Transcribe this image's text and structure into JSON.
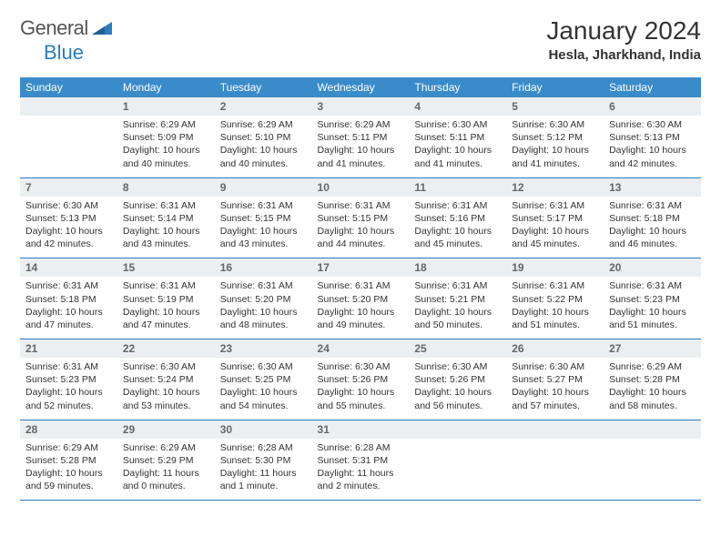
{
  "brand": {
    "word1": "General",
    "word2": "Blue"
  },
  "header": {
    "month_title": "January 2024",
    "location": "Hesla, Jharkhand, India"
  },
  "colors": {
    "header_bg": "#3a8bc9",
    "rule": "#2b7bbf",
    "daynum_bg": "#eceff1"
  },
  "weekdays": [
    "Sunday",
    "Monday",
    "Tuesday",
    "Wednesday",
    "Thursday",
    "Friday",
    "Saturday"
  ],
  "weeks": [
    [
      {
        "n": "",
        "sr": "",
        "ss": "",
        "dl": ""
      },
      {
        "n": "1",
        "sr": "Sunrise: 6:29 AM",
        "ss": "Sunset: 5:09 PM",
        "dl": "Daylight: 10 hours and 40 minutes."
      },
      {
        "n": "2",
        "sr": "Sunrise: 6:29 AM",
        "ss": "Sunset: 5:10 PM",
        "dl": "Daylight: 10 hours and 40 minutes."
      },
      {
        "n": "3",
        "sr": "Sunrise: 6:29 AM",
        "ss": "Sunset: 5:11 PM",
        "dl": "Daylight: 10 hours and 41 minutes."
      },
      {
        "n": "4",
        "sr": "Sunrise: 6:30 AM",
        "ss": "Sunset: 5:11 PM",
        "dl": "Daylight: 10 hours and 41 minutes."
      },
      {
        "n": "5",
        "sr": "Sunrise: 6:30 AM",
        "ss": "Sunset: 5:12 PM",
        "dl": "Daylight: 10 hours and 41 minutes."
      },
      {
        "n": "6",
        "sr": "Sunrise: 6:30 AM",
        "ss": "Sunset: 5:13 PM",
        "dl": "Daylight: 10 hours and 42 minutes."
      }
    ],
    [
      {
        "n": "7",
        "sr": "Sunrise: 6:30 AM",
        "ss": "Sunset: 5:13 PM",
        "dl": "Daylight: 10 hours and 42 minutes."
      },
      {
        "n": "8",
        "sr": "Sunrise: 6:31 AM",
        "ss": "Sunset: 5:14 PM",
        "dl": "Daylight: 10 hours and 43 minutes."
      },
      {
        "n": "9",
        "sr": "Sunrise: 6:31 AM",
        "ss": "Sunset: 5:15 PM",
        "dl": "Daylight: 10 hours and 43 minutes."
      },
      {
        "n": "10",
        "sr": "Sunrise: 6:31 AM",
        "ss": "Sunset: 5:15 PM",
        "dl": "Daylight: 10 hours and 44 minutes."
      },
      {
        "n": "11",
        "sr": "Sunrise: 6:31 AM",
        "ss": "Sunset: 5:16 PM",
        "dl": "Daylight: 10 hours and 45 minutes."
      },
      {
        "n": "12",
        "sr": "Sunrise: 6:31 AM",
        "ss": "Sunset: 5:17 PM",
        "dl": "Daylight: 10 hours and 45 minutes."
      },
      {
        "n": "13",
        "sr": "Sunrise: 6:31 AM",
        "ss": "Sunset: 5:18 PM",
        "dl": "Daylight: 10 hours and 46 minutes."
      }
    ],
    [
      {
        "n": "14",
        "sr": "Sunrise: 6:31 AM",
        "ss": "Sunset: 5:18 PM",
        "dl": "Daylight: 10 hours and 47 minutes."
      },
      {
        "n": "15",
        "sr": "Sunrise: 6:31 AM",
        "ss": "Sunset: 5:19 PM",
        "dl": "Daylight: 10 hours and 47 minutes."
      },
      {
        "n": "16",
        "sr": "Sunrise: 6:31 AM",
        "ss": "Sunset: 5:20 PM",
        "dl": "Daylight: 10 hours and 48 minutes."
      },
      {
        "n": "17",
        "sr": "Sunrise: 6:31 AM",
        "ss": "Sunset: 5:20 PM",
        "dl": "Daylight: 10 hours and 49 minutes."
      },
      {
        "n": "18",
        "sr": "Sunrise: 6:31 AM",
        "ss": "Sunset: 5:21 PM",
        "dl": "Daylight: 10 hours and 50 minutes."
      },
      {
        "n": "19",
        "sr": "Sunrise: 6:31 AM",
        "ss": "Sunset: 5:22 PM",
        "dl": "Daylight: 10 hours and 51 minutes."
      },
      {
        "n": "20",
        "sr": "Sunrise: 6:31 AM",
        "ss": "Sunset: 5:23 PM",
        "dl": "Daylight: 10 hours and 51 minutes."
      }
    ],
    [
      {
        "n": "21",
        "sr": "Sunrise: 6:31 AM",
        "ss": "Sunset: 5:23 PM",
        "dl": "Daylight: 10 hours and 52 minutes."
      },
      {
        "n": "22",
        "sr": "Sunrise: 6:30 AM",
        "ss": "Sunset: 5:24 PM",
        "dl": "Daylight: 10 hours and 53 minutes."
      },
      {
        "n": "23",
        "sr": "Sunrise: 6:30 AM",
        "ss": "Sunset: 5:25 PM",
        "dl": "Daylight: 10 hours and 54 minutes."
      },
      {
        "n": "24",
        "sr": "Sunrise: 6:30 AM",
        "ss": "Sunset: 5:26 PM",
        "dl": "Daylight: 10 hours and 55 minutes."
      },
      {
        "n": "25",
        "sr": "Sunrise: 6:30 AM",
        "ss": "Sunset: 5:26 PM",
        "dl": "Daylight: 10 hours and 56 minutes."
      },
      {
        "n": "26",
        "sr": "Sunrise: 6:30 AM",
        "ss": "Sunset: 5:27 PM",
        "dl": "Daylight: 10 hours and 57 minutes."
      },
      {
        "n": "27",
        "sr": "Sunrise: 6:29 AM",
        "ss": "Sunset: 5:28 PM",
        "dl": "Daylight: 10 hours and 58 minutes."
      }
    ],
    [
      {
        "n": "28",
        "sr": "Sunrise: 6:29 AM",
        "ss": "Sunset: 5:28 PM",
        "dl": "Daylight: 10 hours and 59 minutes."
      },
      {
        "n": "29",
        "sr": "Sunrise: 6:29 AM",
        "ss": "Sunset: 5:29 PM",
        "dl": "Daylight: 11 hours and 0 minutes."
      },
      {
        "n": "30",
        "sr": "Sunrise: 6:28 AM",
        "ss": "Sunset: 5:30 PM",
        "dl": "Daylight: 11 hours and 1 minute."
      },
      {
        "n": "31",
        "sr": "Sunrise: 6:28 AM",
        "ss": "Sunset: 5:31 PM",
        "dl": "Daylight: 11 hours and 2 minutes."
      },
      {
        "n": "",
        "sr": "",
        "ss": "",
        "dl": ""
      },
      {
        "n": "",
        "sr": "",
        "ss": "",
        "dl": ""
      },
      {
        "n": "",
        "sr": "",
        "ss": "",
        "dl": ""
      }
    ]
  ]
}
